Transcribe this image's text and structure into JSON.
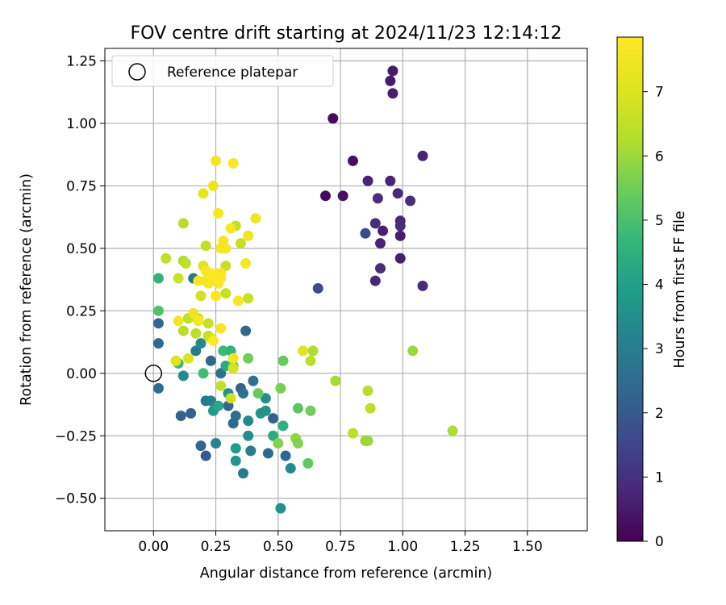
{
  "chart_data": {
    "type": "scatter",
    "title": "FOV centre drift starting at 2024/11/23 12:14:12",
    "xlabel": "Angular distance from reference (arcmin)",
    "ylabel": "Rotation from reference (arcmin)",
    "xlim": [
      -0.195,
      1.74
    ],
    "ylim": [
      -0.63,
      1.3
    ],
    "xticks": [
      0.0,
      0.25,
      0.5,
      0.75,
      1.0,
      1.25,
      1.5
    ],
    "xtick_labels": [
      "0.00",
      "0.25",
      "0.50",
      "0.75",
      "1.00",
      "1.25",
      "1.50"
    ],
    "yticks": [
      -0.5,
      -0.25,
      0.0,
      0.25,
      0.5,
      0.75,
      1.0,
      1.25
    ],
    "ytick_labels": [
      "−0.50",
      "−0.25",
      "0.00",
      "0.25",
      "0.50",
      "0.75",
      "1.00",
      "1.25"
    ],
    "grid": true,
    "legend": {
      "placement": "top-left",
      "entries": [
        "Reference platepar"
      ]
    },
    "reference_point": {
      "x": 0.0,
      "y": 0.0,
      "label": "Reference platepar"
    },
    "colorbar": {
      "label": "Hours from first FF file",
      "colormap": "viridis",
      "range": [
        0,
        7.85
      ],
      "ticks": [
        0,
        1,
        2,
        3,
        4,
        5,
        6,
        7
      ],
      "tick_labels": [
        "0",
        "1",
        "2",
        "3",
        "4",
        "5",
        "6",
        "7"
      ]
    },
    "points": [
      [
        0.72,
        1.02,
        0.2
      ],
      [
        0.69,
        0.71,
        0.2
      ],
      [
        0.76,
        0.71,
        0.3
      ],
      [
        0.8,
        0.85,
        0.3
      ],
      [
        0.95,
        1.17,
        0.5
      ],
      [
        0.96,
        1.21,
        0.5
      ],
      [
        0.96,
        1.12,
        0.6
      ],
      [
        0.86,
        0.77,
        0.7
      ],
      [
        0.95,
        0.77,
        0.7
      ],
      [
        0.9,
        0.7,
        0.9
      ],
      [
        0.98,
        0.72,
        0.8
      ],
      [
        1.03,
        0.69,
        0.9
      ],
      [
        1.08,
        0.87,
        0.7
      ],
      [
        0.89,
        0.6,
        0.9
      ],
      [
        0.92,
        0.57,
        0.6
      ],
      [
        0.99,
        0.61,
        0.8
      ],
      [
        0.99,
        0.59,
        0.9
      ],
      [
        0.99,
        0.55,
        0.6
      ],
      [
        0.91,
        0.52,
        0.7
      ],
      [
        0.99,
        0.46,
        0.6
      ],
      [
        0.91,
        0.42,
        0.9
      ],
      [
        0.89,
        0.37,
        0.8
      ],
      [
        1.08,
        0.35,
        0.9
      ],
      [
        0.85,
        0.56,
        1.6
      ],
      [
        0.66,
        0.34,
        1.7
      ],
      [
        0.02,
        0.2,
        2.4
      ],
      [
        0.02,
        0.12,
        2.4
      ],
      [
        0.02,
        -0.06,
        2.5
      ],
      [
        0.11,
        -0.17,
        2.2
      ],
      [
        0.15,
        -0.16,
        2.2
      ],
      [
        0.19,
        -0.29,
        2.4
      ],
      [
        0.21,
        -0.33,
        2.0
      ],
      [
        0.25,
        -0.28,
        3.2
      ],
      [
        0.23,
        0.05,
        2.3
      ],
      [
        0.27,
        0.0,
        2.6
      ],
      [
        0.33,
        -0.17,
        2.5
      ],
      [
        0.32,
        -0.2,
        2.4
      ],
      [
        0.35,
        -0.06,
        2.2
      ],
      [
        0.36,
        -0.08,
        2.6
      ],
      [
        0.3,
        -0.13,
        2.3
      ],
      [
        0.37,
        0.17,
        2.4
      ],
      [
        0.36,
        -0.4,
        2.9
      ],
      [
        0.39,
        -0.31,
        3.0
      ],
      [
        0.4,
        -0.03,
        2.6
      ],
      [
        0.46,
        -0.32,
        2.4
      ],
      [
        0.48,
        -0.18,
        2.2
      ],
      [
        0.53,
        -0.33,
        2.3
      ],
      [
        0.55,
        -0.38,
        3.4
      ],
      [
        0.51,
        -0.54,
        3.6
      ],
      [
        0.16,
        0.38,
        2.8
      ],
      [
        0.14,
        0.22,
        3.1
      ],
      [
        0.17,
        0.09,
        2.9
      ],
      [
        0.19,
        0.12,
        3.3
      ],
      [
        0.21,
        -0.11,
        2.8
      ],
      [
        0.23,
        -0.11,
        3.0
      ],
      [
        0.24,
        -0.15,
        3.8
      ],
      [
        0.26,
        -0.13,
        4.2
      ],
      [
        0.3,
        -0.08,
        3.6
      ],
      [
        0.33,
        -0.3,
        3.9
      ],
      [
        0.33,
        -0.35,
        3.7
      ],
      [
        0.38,
        -0.19,
        3.3
      ],
      [
        0.38,
        -0.25,
        3.5
      ],
      [
        0.43,
        -0.16,
        3.7
      ],
      [
        0.45,
        -0.15,
        3.6
      ],
      [
        0.45,
        -0.1,
        3.5
      ],
      [
        0.48,
        -0.25,
        4.4
      ],
      [
        0.52,
        -0.21,
        4.5
      ],
      [
        0.5,
        -0.28,
        5.7
      ],
      [
        0.02,
        0.38,
        4.6
      ],
      [
        0.02,
        0.25,
        5.1
      ],
      [
        0.1,
        0.04,
        4.8
      ],
      [
        0.12,
        -0.01,
        3.4
      ],
      [
        0.2,
        0.0,
        4.9
      ],
      [
        0.28,
        0.09,
        4.8
      ],
      [
        0.29,
        0.03,
        4.3
      ],
      [
        0.31,
        0.09,
        4.6
      ],
      [
        0.32,
        0.03,
        5.3
      ],
      [
        0.38,
        0.06,
        5.5
      ],
      [
        0.42,
        -0.08,
        5.4
      ],
      [
        0.51,
        -0.06,
        5.6
      ],
      [
        0.52,
        0.05,
        5.4
      ],
      [
        0.58,
        -0.14,
        5.2
      ],
      [
        0.57,
        -0.26,
        5.9
      ],
      [
        0.58,
        -0.28,
        5.7
      ],
      [
        0.62,
        -0.36,
        5.3
      ],
      [
        0.63,
        -0.15,
        5.5
      ],
      [
        0.64,
        0.09,
        6.2
      ],
      [
        0.73,
        -0.03,
        6.1
      ],
      [
        0.8,
        -0.24,
        6.4
      ],
      [
        0.85,
        -0.27,
        5.9
      ],
      [
        0.86,
        -0.07,
        6.3
      ],
      [
        0.86,
        -0.27,
        6.0
      ],
      [
        0.87,
        -0.14,
        6.4
      ],
      [
        1.04,
        0.09,
        6.0
      ],
      [
        1.2,
        -0.23,
        6.2
      ],
      [
        0.63,
        0.05,
        6.4
      ],
      [
        0.6,
        0.09,
        7.1
      ],
      [
        0.05,
        0.46,
        6.5
      ],
      [
        0.1,
        0.38,
        6.7
      ],
      [
        0.12,
        0.45,
        6.2
      ],
      [
        0.13,
        0.44,
        6.5
      ],
      [
        0.12,
        0.6,
        6.3
      ],
      [
        0.12,
        0.17,
        6.3
      ],
      [
        0.14,
        0.22,
        6.5
      ],
      [
        0.17,
        0.16,
        6.4
      ],
      [
        0.18,
        0.22,
        6.6
      ],
      [
        0.19,
        0.31,
        6.8
      ],
      [
        0.2,
        0.43,
        7.0
      ],
      [
        0.22,
        0.2,
        6.6
      ],
      [
        0.22,
        0.15,
        6.5
      ],
      [
        0.23,
        0.14,
        6.8
      ],
      [
        0.27,
        -0.05,
        6.5
      ],
      [
        0.29,
        0.32,
        6.6
      ],
      [
        0.29,
        0.43,
        6.6
      ],
      [
        0.31,
        -0.1,
        6.7
      ],
      [
        0.32,
        0.02,
        6.9
      ],
      [
        0.33,
        0.59,
        6.5
      ],
      [
        0.35,
        0.52,
        6.6
      ],
      [
        0.38,
        0.3,
        6.6
      ],
      [
        0.09,
        0.05,
        7.1
      ],
      [
        0.1,
        0.21,
        7.6
      ],
      [
        0.14,
        0.06,
        7.0
      ],
      [
        0.16,
        0.24,
        7.4
      ],
      [
        0.18,
        0.21,
        7.7
      ],
      [
        0.18,
        0.37,
        7.7
      ],
      [
        0.21,
        0.37,
        7.6
      ],
      [
        0.21,
        0.41,
        7.7
      ],
      [
        0.22,
        0.36,
        7.7
      ],
      [
        0.23,
        0.38,
        7.8
      ],
      [
        0.23,
        0.4,
        7.8
      ],
      [
        0.24,
        0.13,
        7.8
      ],
      [
        0.25,
        0.31,
        7.7
      ],
      [
        0.25,
        0.37,
        7.8
      ],
      [
        0.26,
        0.4,
        7.8
      ],
      [
        0.26,
        0.36,
        7.8
      ],
      [
        0.27,
        0.38,
        7.8
      ],
      [
        0.27,
        0.18,
        7.7
      ],
      [
        0.27,
        0.5,
        7.7
      ],
      [
        0.28,
        0.53,
        7.6
      ],
      [
        0.29,
        0.5,
        7.7
      ],
      [
        0.31,
        0.58,
        7.7
      ],
      [
        0.32,
        0.06,
        7.5
      ],
      [
        0.34,
        0.29,
        7.7
      ],
      [
        0.37,
        0.44,
        7.7
      ],
      [
        0.38,
        0.55,
        7.5
      ],
      [
        0.41,
        0.62,
        7.5
      ],
      [
        0.2,
        0.72,
        7.2
      ],
      [
        0.24,
        0.75,
        7.4
      ],
      [
        0.25,
        0.85,
        7.6
      ],
      [
        0.26,
        0.64,
        7.7
      ],
      [
        0.32,
        0.84,
        7.8
      ],
      [
        0.21,
        0.51,
        6.5
      ],
      [
        0.27,
        0.4,
        7.7
      ]
    ]
  }
}
